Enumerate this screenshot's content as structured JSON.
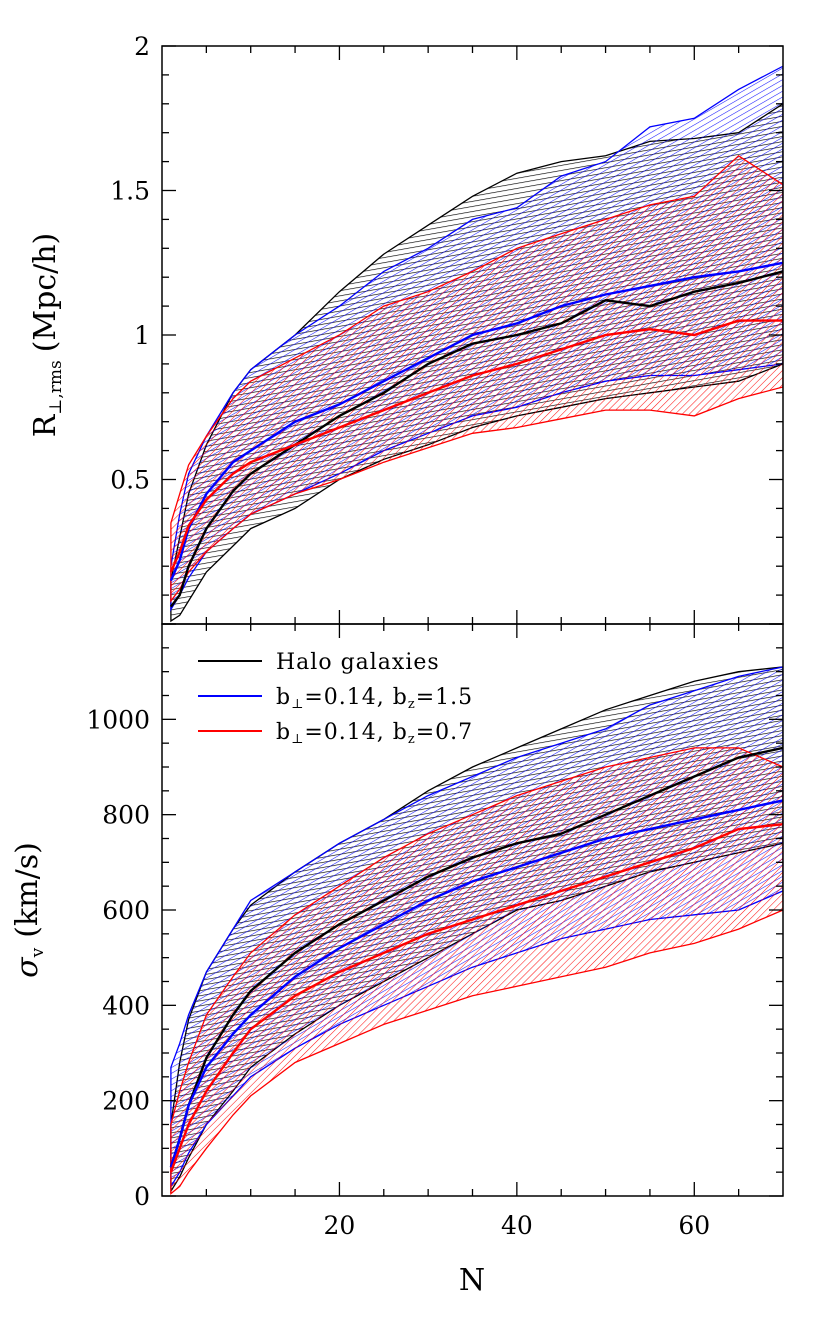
{
  "chart_data": [
    {
      "type": "area",
      "panel": "top",
      "ylabel": "R⊥,rms (Mpc/h)",
      "ylabel_main": "R",
      "ylabel_sub": "⊥,rms",
      "ylabel_unit": "(Mpc/h)",
      "xlim": [
        0,
        70
      ],
      "ylim": [
        0,
        2
      ],
      "yticks": [
        0.5,
        1,
        1.5,
        2
      ],
      "ytick_labels": [
        "0.5",
        "1",
        "1.5",
        "2"
      ],
      "x": [
        1,
        2,
        3,
        5,
        8,
        10,
        15,
        20,
        25,
        30,
        35,
        40,
        45,
        50,
        55,
        60,
        65,
        70
      ],
      "series": [
        {
          "color": "#000000",
          "median": [
            0.06,
            0.1,
            0.2,
            0.33,
            0.46,
            0.52,
            0.62,
            0.72,
            0.8,
            0.9,
            0.97,
            1.0,
            1.04,
            1.12,
            1.1,
            1.15,
            1.18,
            1.22
          ],
          "upper": [
            0.15,
            0.3,
            0.45,
            0.62,
            0.8,
            0.88,
            1.0,
            1.15,
            1.28,
            1.38,
            1.48,
            1.56,
            1.6,
            1.62,
            1.67,
            1.68,
            1.7,
            1.8
          ],
          "lower": [
            0.01,
            0.03,
            0.08,
            0.18,
            0.27,
            0.33,
            0.4,
            0.5,
            0.57,
            0.62,
            0.68,
            0.72,
            0.75,
            0.78,
            0.8,
            0.82,
            0.84,
            0.9
          ]
        },
        {
          "color": "#0000ff",
          "median": [
            0.15,
            0.22,
            0.33,
            0.45,
            0.56,
            0.6,
            0.7,
            0.76,
            0.84,
            0.92,
            1.0,
            1.04,
            1.1,
            1.14,
            1.17,
            1.2,
            1.22,
            1.25
          ],
          "upper": [
            0.2,
            0.38,
            0.52,
            0.65,
            0.8,
            0.88,
            1.0,
            1.1,
            1.22,
            1.3,
            1.4,
            1.44,
            1.55,
            1.6,
            1.72,
            1.75,
            1.85,
            1.93
          ],
          "lower": [
            0.05,
            0.1,
            0.16,
            0.25,
            0.33,
            0.38,
            0.45,
            0.52,
            0.6,
            0.66,
            0.72,
            0.75,
            0.8,
            0.84,
            0.86,
            0.86,
            0.88,
            0.9
          ]
        },
        {
          "color": "#ff0000",
          "median": [
            0.18,
            0.25,
            0.34,
            0.43,
            0.52,
            0.56,
            0.62,
            0.68,
            0.74,
            0.8,
            0.86,
            0.9,
            0.95,
            1.0,
            1.02,
            1.0,
            1.05,
            1.05
          ],
          "upper": [
            0.35,
            0.45,
            0.55,
            0.65,
            0.78,
            0.84,
            0.92,
            1.0,
            1.1,
            1.15,
            1.22,
            1.3,
            1.35,
            1.4,
            1.45,
            1.48,
            1.62,
            1.52
          ],
          "lower": [
            0.08,
            0.12,
            0.18,
            0.25,
            0.33,
            0.38,
            0.45,
            0.5,
            0.56,
            0.61,
            0.66,
            0.68,
            0.71,
            0.74,
            0.74,
            0.72,
            0.78,
            0.82
          ]
        }
      ]
    },
    {
      "type": "area",
      "panel": "bottom",
      "xlabel": "N",
      "ylabel": "σv (km/s)",
      "ylabel_main": "σ",
      "ylabel_sub": "v",
      "ylabel_unit": "(km/s)",
      "xlim": [
        0,
        70
      ],
      "ylim": [
        0,
        1200
      ],
      "xticks": [
        20,
        40,
        60
      ],
      "xtick_labels": [
        "20",
        "40",
        "60"
      ],
      "yticks": [
        0,
        200,
        400,
        600,
        800,
        1000
      ],
      "ytick_labels": [
        "0",
        "200",
        "400",
        "600",
        "800",
        "1000"
      ],
      "x": [
        1,
        2,
        3,
        5,
        8,
        10,
        15,
        20,
        25,
        30,
        35,
        40,
        45,
        50,
        55,
        60,
        65,
        70
      ],
      "series": [
        {
          "name_main": "Halo galaxies",
          "color": "#000000",
          "median": [
            60,
            120,
            190,
            290,
            380,
            430,
            510,
            570,
            620,
            670,
            710,
            740,
            760,
            800,
            840,
            880,
            920,
            940
          ],
          "upper": [
            150,
            280,
            370,
            470,
            560,
            610,
            680,
            740,
            790,
            850,
            900,
            940,
            980,
            1020,
            1050,
            1080,
            1100,
            1110
          ],
          "lower": [
            10,
            40,
            80,
            150,
            220,
            270,
            340,
            400,
            450,
            500,
            550,
            600,
            620,
            650,
            680,
            700,
            720,
            740
          ]
        },
        {
          "name_main": "b",
          "name_sub1": "⊥",
          "name_mid": "=0.14, b",
          "name_sub2": "z",
          "name_end": "=1.5",
          "color": "#0000ff",
          "median": [
            60,
            120,
            190,
            270,
            340,
            380,
            460,
            520,
            570,
            620,
            660,
            690,
            720,
            750,
            770,
            790,
            810,
            830
          ],
          "upper": [
            270,
            320,
            380,
            470,
            560,
            620,
            680,
            740,
            790,
            840,
            880,
            920,
            950,
            980,
            1030,
            1060,
            1090,
            1110
          ],
          "lower": [
            20,
            50,
            90,
            150,
            210,
            250,
            310,
            360,
            400,
            440,
            480,
            510,
            540,
            560,
            580,
            590,
            600,
            640
          ]
        },
        {
          "name_main": "b",
          "name_sub1": "⊥",
          "name_mid": "=0.14, b",
          "name_sub2": "z",
          "name_end": "=0.7",
          "color": "#ff0000",
          "median": [
            50,
            100,
            150,
            220,
            300,
            350,
            420,
            470,
            510,
            550,
            580,
            610,
            640,
            670,
            700,
            730,
            770,
            780
          ],
          "upper": [
            150,
            220,
            280,
            380,
            460,
            510,
            590,
            650,
            710,
            760,
            800,
            840,
            870,
            900,
            920,
            940,
            940,
            900
          ],
          "lower": [
            5,
            20,
            50,
            100,
            170,
            210,
            280,
            320,
            360,
            390,
            420,
            440,
            460,
            480,
            510,
            530,
            560,
            600
          ]
        }
      ]
    }
  ]
}
